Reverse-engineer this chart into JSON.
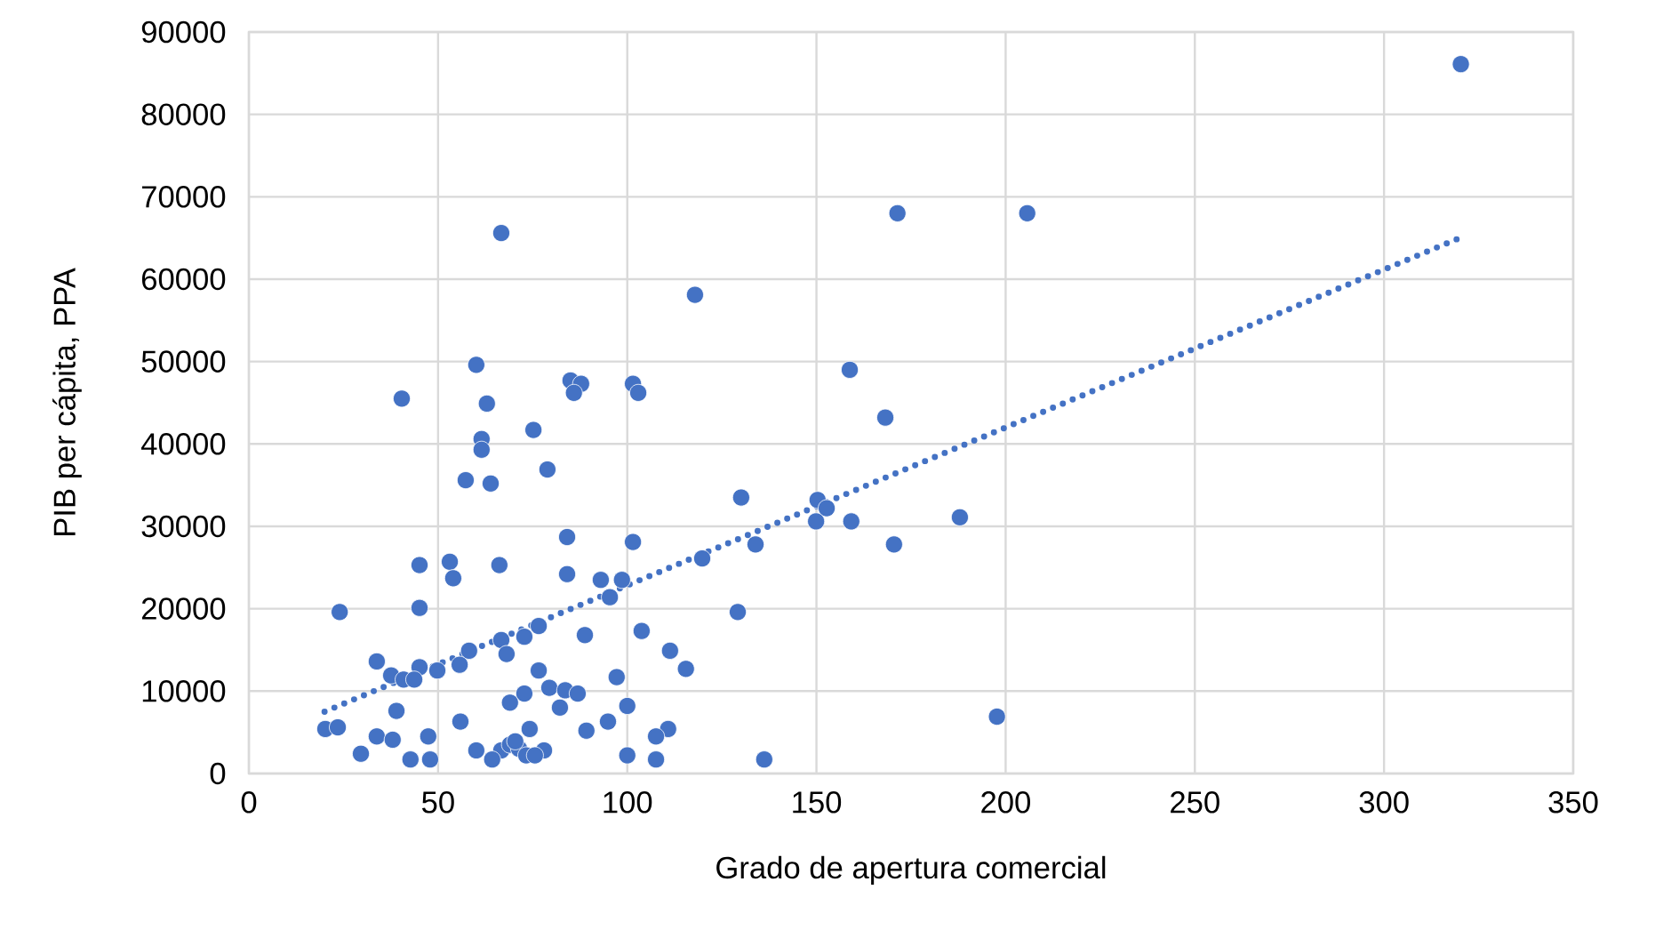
{
  "chart_data": {
    "type": "scatter",
    "xlabel": "Grado de apertura  comercial",
    "ylabel": "PIB per cápita, PPA",
    "xlim": [
      0,
      350
    ],
    "ylim": [
      0,
      90000
    ],
    "xticks": [
      0,
      50,
      100,
      150,
      200,
      250,
      300,
      350
    ],
    "yticks": [
      0,
      10000,
      20000,
      30000,
      40000,
      50000,
      60000,
      70000,
      80000,
      90000
    ],
    "grid": true,
    "marker": "circle",
    "series": [
      {
        "color": "#4472c4",
        "x": [
          320.3,
          171.4,
          205.7,
          66.7,
          117.9,
          158.8,
          60.1,
          40.4,
          62.9,
          85.0,
          87.8,
          85.9,
          101.5,
          102.9,
          168.2,
          61.5,
          61.5,
          75.2,
          57.3,
          63.9,
          78.9,
          187.9,
          130.1,
          150.3,
          152.7,
          149.9,
          159.2,
          170.5,
          133.9,
          119.8,
          84.1,
          101.5,
          53.1,
          54.0,
          45.1,
          66.2,
          84.1,
          93.0,
          98.6,
          95.4,
          24.0,
          45.1,
          129.2,
          88.8,
          72.8,
          66.7,
          103.8,
          58.2,
          111.3,
          76.6,
          33.8,
          68.1,
          115.5,
          55.7,
          49.8,
          45.1,
          37.6,
          40.9,
          43.7,
          76.6,
          97.2,
          72.8,
          79.4,
          83.6,
          86.9,
          82.2,
          69.0,
          100.0,
          39.0,
          55.9,
          94.9,
          197.7,
          33.8,
          38.0,
          47.4,
          74.2,
          89.2,
          110.8,
          107.6,
          20.2,
          23.5,
          29.6,
          42.7,
          47.9,
          60.1,
          66.7,
          64.3,
          69.0,
          71.4,
          73.3,
          78.0,
          100.0,
          107.6,
          136.2,
          70.4,
          75.6
        ],
        "values": [
          86100,
          68000,
          68000,
          65600,
          58100,
          49000,
          49600,
          45500,
          44900,
          47700,
          47300,
          46200,
          47300,
          46200,
          43200,
          40600,
          39300,
          41700,
          35600,
          35200,
          36900,
          31100,
          33500,
          33200,
          32200,
          30600,
          30600,
          27800,
          27800,
          26100,
          28700,
          28100,
          25700,
          23700,
          25300,
          25300,
          24200,
          23500,
          23500,
          21400,
          19600,
          20100,
          19600,
          16800,
          16600,
          16200,
          17300,
          14900,
          14900,
          17900,
          13600,
          14500,
          12700,
          13200,
          12500,
          12900,
          11900,
          11400,
          11400,
          12500,
          11700,
          9700,
          10400,
          10100,
          9700,
          8000,
          8600,
          8200,
          7600,
          6300,
          6300,
          6900,
          4500,
          4100,
          4500,
          5400,
          5200,
          5400,
          4500,
          5400,
          5600,
          2400,
          1700,
          1700,
          2800,
          2800,
          1700,
          3500,
          3000,
          2200,
          2800,
          2200,
          1700,
          1700,
          3900,
          2200
        ]
      },
      {
        "type": "line",
        "color": "#4472c4",
        "line_style": "dotted",
        "marker": "none",
        "x": [
          20,
          320
        ],
        "values": [
          7500,
          65000
        ]
      }
    ]
  }
}
